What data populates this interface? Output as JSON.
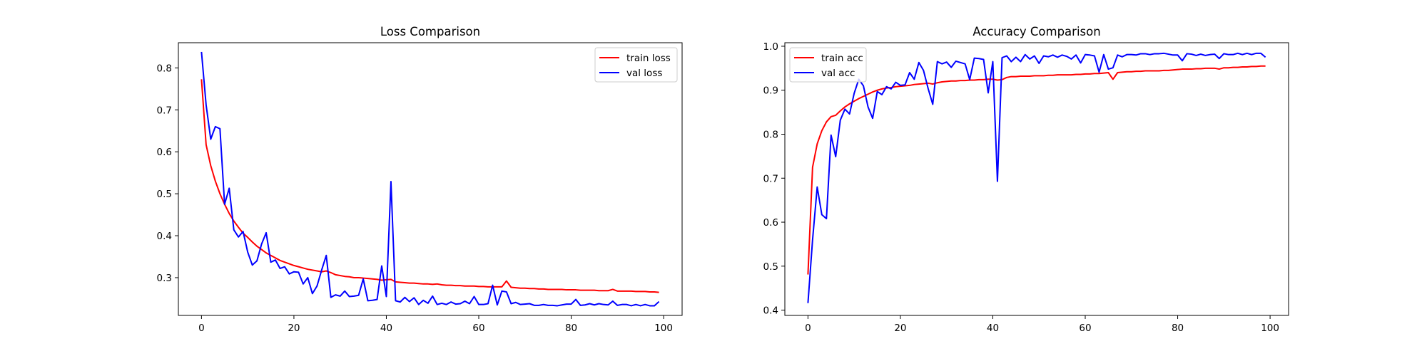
{
  "chart_data": [
    {
      "type": "line",
      "title": "Loss Comparison",
      "xlabel": "",
      "ylabel": "",
      "xlim": [
        -5,
        104
      ],
      "ylim": [
        0.21,
        0.86
      ],
      "xticks": [
        0,
        20,
        40,
        60,
        80,
        100
      ],
      "yticks": [
        0.3,
        0.4,
        0.5,
        0.6,
        0.7,
        0.8
      ],
      "x_start": 0,
      "legend": "upper right",
      "series": [
        {
          "name": "train loss",
          "color": "#ff0000",
          "values": [
            0.773,
            0.617,
            0.567,
            0.53,
            0.5,
            0.475,
            0.453,
            0.435,
            0.42,
            0.406,
            0.396,
            0.385,
            0.375,
            0.367,
            0.359,
            0.353,
            0.347,
            0.341,
            0.337,
            0.333,
            0.329,
            0.326,
            0.323,
            0.32,
            0.318,
            0.316,
            0.314,
            0.316,
            0.312,
            0.307,
            0.305,
            0.303,
            0.302,
            0.3,
            0.3,
            0.299,
            0.298,
            0.297,
            0.296,
            0.294,
            0.295,
            0.296,
            0.29,
            0.289,
            0.288,
            0.287,
            0.287,
            0.286,
            0.285,
            0.285,
            0.284,
            0.285,
            0.283,
            0.282,
            0.282,
            0.281,
            0.281,
            0.28,
            0.28,
            0.28,
            0.279,
            0.279,
            0.278,
            0.278,
            0.278,
            0.278,
            0.292,
            0.277,
            0.276,
            0.275,
            0.275,
            0.274,
            0.274,
            0.273,
            0.273,
            0.272,
            0.272,
            0.272,
            0.272,
            0.271,
            0.271,
            0.271,
            0.27,
            0.27,
            0.27,
            0.27,
            0.269,
            0.269,
            0.269,
            0.272,
            0.268,
            0.268,
            0.268,
            0.268,
            0.267,
            0.267,
            0.267,
            0.266,
            0.266,
            0.265
          ]
        },
        {
          "name": "val loss",
          "color": "#0000ff",
          "values": [
            0.838,
            0.712,
            0.63,
            0.66,
            0.655,
            0.475,
            0.513,
            0.414,
            0.397,
            0.41,
            0.361,
            0.33,
            0.34,
            0.38,
            0.407,
            0.337,
            0.342,
            0.322,
            0.326,
            0.309,
            0.314,
            0.313,
            0.285,
            0.3,
            0.262,
            0.28,
            0.318,
            0.353,
            0.253,
            0.259,
            0.256,
            0.268,
            0.255,
            0.256,
            0.258,
            0.297,
            0.245,
            0.246,
            0.248,
            0.328,
            0.255,
            0.529,
            0.245,
            0.242,
            0.253,
            0.243,
            0.252,
            0.236,
            0.246,
            0.239,
            0.256,
            0.236,
            0.239,
            0.236,
            0.242,
            0.237,
            0.238,
            0.244,
            0.238,
            0.255,
            0.236,
            0.236,
            0.238,
            0.282,
            0.235,
            0.268,
            0.266,
            0.238,
            0.241,
            0.236,
            0.237,
            0.238,
            0.234,
            0.234,
            0.236,
            0.234,
            0.234,
            0.233,
            0.235,
            0.237,
            0.237,
            0.248,
            0.234,
            0.235,
            0.238,
            0.235,
            0.238,
            0.236,
            0.235,
            0.244,
            0.234,
            0.236,
            0.236,
            0.233,
            0.236,
            0.233,
            0.236,
            0.233,
            0.233,
            0.243
          ]
        }
      ]
    },
    {
      "type": "line",
      "title": "Accuracy Comparison",
      "xlabel": "",
      "ylabel": "",
      "xlim": [
        -5,
        104
      ],
      "ylim": [
        0.388,
        1.008
      ],
      "xticks": [
        0,
        20,
        40,
        60,
        80,
        100
      ],
      "yticks": [
        0.4,
        0.5,
        0.6,
        0.7,
        0.8,
        0.9,
        1.0
      ],
      "x_start": 0,
      "legend": "upper left",
      "series": [
        {
          "name": "train acc",
          "color": "#ff0000",
          "values": [
            0.481,
            0.725,
            0.778,
            0.808,
            0.828,
            0.84,
            0.843,
            0.853,
            0.862,
            0.869,
            0.875,
            0.881,
            0.886,
            0.891,
            0.896,
            0.9,
            0.903,
            0.905,
            0.906,
            0.908,
            0.909,
            0.91,
            0.911,
            0.913,
            0.914,
            0.915,
            0.916,
            0.914,
            0.917,
            0.919,
            0.92,
            0.921,
            0.921,
            0.922,
            0.922,
            0.923,
            0.923,
            0.924,
            0.924,
            0.925,
            0.925,
            0.923,
            0.924,
            0.929,
            0.931,
            0.931,
            0.932,
            0.932,
            0.932,
            0.933,
            0.933,
            0.933,
            0.934,
            0.934,
            0.935,
            0.935,
            0.935,
            0.935,
            0.936,
            0.936,
            0.937,
            0.937,
            0.938,
            0.938,
            0.939,
            0.94,
            0.925,
            0.94,
            0.941,
            0.942,
            0.942,
            0.943,
            0.943,
            0.944,
            0.944,
            0.944,
            0.944,
            0.945,
            0.945,
            0.946,
            0.947,
            0.948,
            0.948,
            0.948,
            0.949,
            0.949,
            0.95,
            0.95,
            0.95,
            0.948,
            0.951,
            0.951,
            0.952,
            0.952,
            0.953,
            0.953,
            0.954,
            0.954,
            0.955,
            0.955
          ]
        },
        {
          "name": "val acc",
          "color": "#0000ff",
          "values": [
            0.416,
            0.56,
            0.68,
            0.617,
            0.608,
            0.798,
            0.749,
            0.832,
            0.857,
            0.846,
            0.893,
            0.925,
            0.91,
            0.862,
            0.836,
            0.897,
            0.89,
            0.908,
            0.903,
            0.918,
            0.911,
            0.912,
            0.94,
            0.925,
            0.963,
            0.945,
            0.904,
            0.868,
            0.965,
            0.96,
            0.964,
            0.952,
            0.966,
            0.963,
            0.96,
            0.924,
            0.973,
            0.972,
            0.97,
            0.894,
            0.965,
            0.693,
            0.974,
            0.978,
            0.965,
            0.975,
            0.965,
            0.981,
            0.971,
            0.978,
            0.961,
            0.978,
            0.976,
            0.98,
            0.975,
            0.98,
            0.977,
            0.971,
            0.98,
            0.962,
            0.981,
            0.98,
            0.978,
            0.941,
            0.981,
            0.948,
            0.951,
            0.98,
            0.976,
            0.981,
            0.981,
            0.98,
            0.983,
            0.983,
            0.981,
            0.983,
            0.983,
            0.984,
            0.982,
            0.98,
            0.98,
            0.967,
            0.983,
            0.982,
            0.979,
            0.982,
            0.979,
            0.981,
            0.982,
            0.972,
            0.983,
            0.981,
            0.981,
            0.984,
            0.981,
            0.984,
            0.981,
            0.984,
            0.984,
            0.975
          ]
        }
      ]
    }
  ]
}
